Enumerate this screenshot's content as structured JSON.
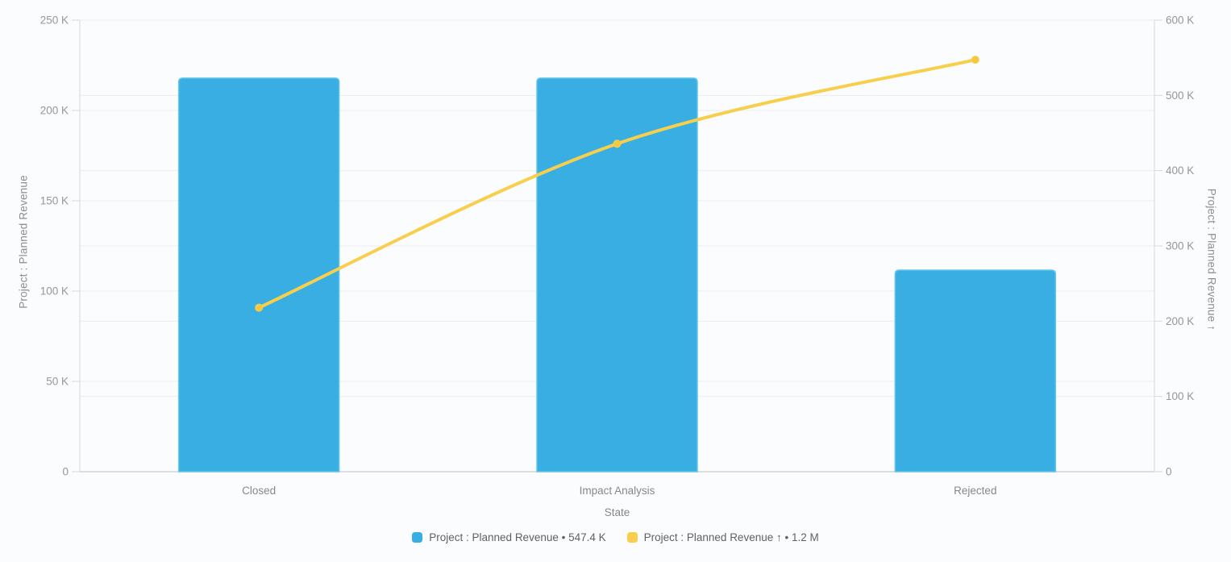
{
  "chart_data": {
    "type": "combo-bar-line",
    "categories": [
      "Closed",
      "Impact Analysis",
      "Rejected"
    ],
    "xlabel": "State",
    "series": [
      {
        "name": "Project : Planned Revenue",
        "type": "bar",
        "axis": "left",
        "values": [
          217900,
          217900,
          111600
        ],
        "total_label": "547.4 K",
        "color": "#38AEE3"
      },
      {
        "name": "Project : Planned Revenue ↑",
        "type": "line",
        "axis": "right",
        "values": [
          217900,
          435800,
          547400
        ],
        "total_label": "1.2 M",
        "color": "#F8CF4C"
      }
    ],
    "left_axis": {
      "title": "Project : Planned Revenue",
      "min": 0,
      "max": 250000,
      "step": 50000,
      "tick_labels": [
        "0",
        "50 K",
        "100 K",
        "150 K",
        "200 K",
        "250 K"
      ]
    },
    "right_axis": {
      "title": "Project : Planned Revenue ↑",
      "min": 0,
      "max": 600000,
      "step": 100000,
      "tick_labels": [
        "0",
        "100 K",
        "200 K",
        "300 K",
        "400 K",
        "500 K",
        "600 K"
      ]
    },
    "legend": {
      "position": "bottom",
      "items": [
        {
          "label": "Project : Planned Revenue • 547.4 K",
          "color": "#38AEE3"
        },
        {
          "label": "Project : Planned Revenue ↑ • 1.2 M",
          "color": "#F8CF4C"
        }
      ]
    },
    "grid": true,
    "colors": {
      "bar": "#38AEE3",
      "bar_border": "#63C4EC",
      "line": "#F8CF4C",
      "marker": "#F5C840",
      "grid": "#ECEDEF",
      "axis_line": "#D5D8DA",
      "baseline": "#C9CCCE",
      "tick_text": "#94979B",
      "category_text": "#85888B",
      "background": "#FBFCFD"
    }
  }
}
